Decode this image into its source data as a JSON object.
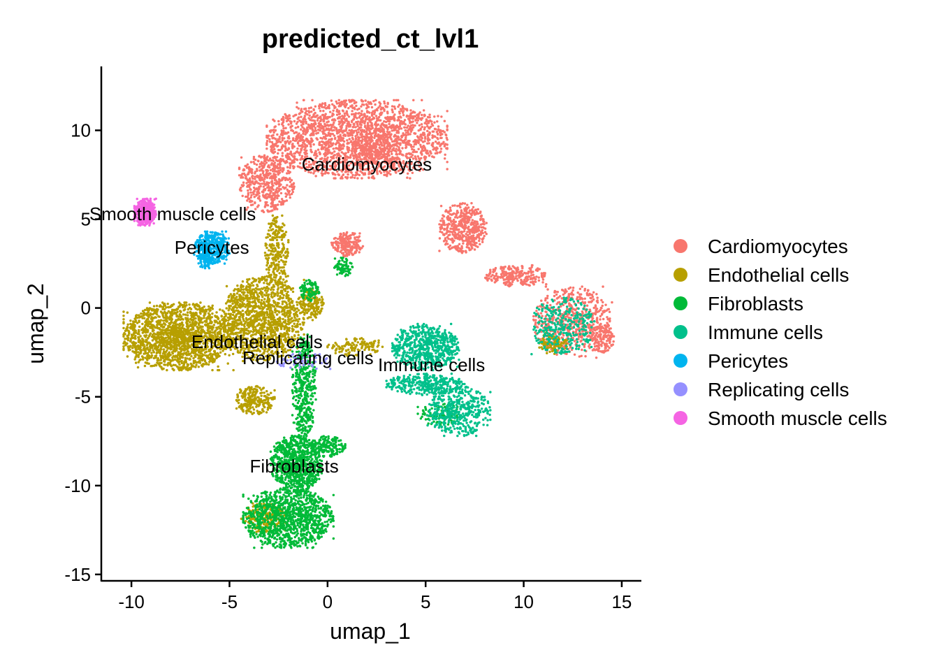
{
  "chart_data": {
    "type": "scatter",
    "title": "predicted_ct_lvl1",
    "xlabel": "umap_1",
    "ylabel": "umap_2",
    "xlim": [
      -11.5,
      16
    ],
    "ylim": [
      -15.4,
      13.6
    ],
    "x_ticks": [
      -10,
      -5,
      0,
      5,
      10,
      15
    ],
    "y_ticks": [
      -15,
      -10,
      -5,
      0,
      5,
      10
    ],
    "x_tick_labels": [
      "-10",
      "-5",
      "0",
      "5",
      "10",
      "15"
    ],
    "y_tick_labels": [
      "-15",
      "-10",
      "-5",
      "0",
      "5",
      "10"
    ],
    "grid": false,
    "legend_position": "right",
    "series": [
      {
        "name": "Cardiomyocytes",
        "color": "#F8766D",
        "label": {
          "text": "Cardiomyocytes",
          "x": 2.0,
          "y": 8.1
        },
        "clusters": [
          {
            "cx": 1.5,
            "cy": 9.5,
            "rx": 4.6,
            "ry": 2.2,
            "n": 2200
          },
          {
            "cx": -3.1,
            "cy": 7.0,
            "rx": 1.4,
            "ry": 1.6,
            "n": 500
          },
          {
            "cx": 2.2,
            "cy": 8.8,
            "rx": 1.0,
            "ry": 0.7,
            "n": 120
          },
          {
            "cx": 1.0,
            "cy": 3.6,
            "rx": 0.8,
            "ry": 0.7,
            "n": 200
          },
          {
            "cx": 6.9,
            "cy": 4.5,
            "rx": 1.2,
            "ry": 1.4,
            "n": 450
          },
          {
            "cx": 9.6,
            "cy": 1.8,
            "rx": 1.6,
            "ry": 0.6,
            "n": 250
          },
          {
            "cx": 12.5,
            "cy": -0.8,
            "rx": 2.0,
            "ry": 2.0,
            "n": 600
          },
          {
            "cx": 14.0,
            "cy": -1.7,
            "rx": 0.6,
            "ry": 0.8,
            "n": 120
          }
        ]
      },
      {
        "name": "Endothelial cells",
        "color": "#B79F00",
        "label": {
          "text": "Endothelial cells",
          "x": -3.6,
          "y": -1.9
        },
        "clusters": [
          {
            "cx": -7.6,
            "cy": -1.6,
            "rx": 2.8,
            "ry": 1.9,
            "n": 1700
          },
          {
            "cx": -3.3,
            "cy": -0.6,
            "rx": 2.1,
            "ry": 2.4,
            "n": 1300
          },
          {
            "cx": -2.6,
            "cy": 3.2,
            "rx": 0.6,
            "ry": 2.0,
            "n": 250
          },
          {
            "cx": -3.7,
            "cy": -5.2,
            "rx": 1.0,
            "ry": 0.8,
            "n": 220
          },
          {
            "cx": -0.8,
            "cy": 0.2,
            "rx": 0.6,
            "ry": 0.9,
            "n": 160
          },
          {
            "cx": 1.4,
            "cy": -2.2,
            "rx": 1.4,
            "ry": 0.5,
            "n": 120
          },
          {
            "cx": 11.5,
            "cy": -2.0,
            "rx": 0.8,
            "ry": 0.6,
            "n": 90
          },
          {
            "cx": -3.2,
            "cy": -11.8,
            "rx": 1.2,
            "ry": 0.8,
            "n": 200
          }
        ]
      },
      {
        "name": "Fibroblasts",
        "color": "#00BA38",
        "label": {
          "text": "Fibroblasts",
          "x": -1.7,
          "y": -8.9
        },
        "clusters": [
          {
            "cx": -1.6,
            "cy": -8.8,
            "rx": 1.3,
            "ry": 1.6,
            "n": 800
          },
          {
            "cx": -2.0,
            "cy": -11.8,
            "rx": 2.3,
            "ry": 1.7,
            "n": 1100
          },
          {
            "cx": -1.2,
            "cy": -4.5,
            "rx": 0.6,
            "ry": 3.0,
            "n": 420
          },
          {
            "cx": 0.0,
            "cy": -7.8,
            "rx": 0.9,
            "ry": 0.6,
            "n": 160
          },
          {
            "cx": -0.9,
            "cy": 1.0,
            "rx": 0.5,
            "ry": 0.6,
            "n": 90
          },
          {
            "cx": 0.8,
            "cy": 2.3,
            "rx": 0.5,
            "ry": 0.6,
            "n": 70
          },
          {
            "cx": 5.8,
            "cy": -6.0,
            "rx": 1.2,
            "ry": 0.6,
            "n": 90
          }
        ]
      },
      {
        "name": "Immune cells",
        "color": "#00C08B",
        "label": {
          "text": "Immune cells",
          "x": 5.3,
          "y": -3.2
        },
        "clusters": [
          {
            "cx": 5.0,
            "cy": -2.2,
            "rx": 1.7,
            "ry": 1.3,
            "n": 650
          },
          {
            "cx": 5.0,
            "cy": -4.3,
            "rx": 2.0,
            "ry": 0.6,
            "n": 320
          },
          {
            "cx": 6.7,
            "cy": -5.8,
            "rx": 1.6,
            "ry": 1.4,
            "n": 450
          },
          {
            "cx": 12.0,
            "cy": -1.0,
            "rx": 1.6,
            "ry": 1.6,
            "n": 320
          }
        ]
      },
      {
        "name": "Pericytes",
        "color": "#00B4EF",
        "label": {
          "text": "Pericytes",
          "x": -5.9,
          "y": 3.4
        },
        "clusters": [
          {
            "cx": -5.9,
            "cy": 3.4,
            "rx": 0.9,
            "ry": 0.9,
            "n": 420
          },
          {
            "cx": -6.2,
            "cy": 2.6,
            "rx": 0.4,
            "ry": 0.4,
            "n": 60
          }
        ]
      },
      {
        "name": "Replicating cells",
        "color": "#9590FF",
        "label": {
          "text": "Replicating cells",
          "x": -1.0,
          "y": -2.8
        },
        "clusters": [
          {
            "cx": -1.2,
            "cy": -3.0,
            "rx": 1.5,
            "ry": 0.5,
            "n": 50
          }
        ]
      },
      {
        "name": "Smooth muscle cells",
        "color": "#F564E3",
        "label": {
          "text": "Smooth muscle cells",
          "x": -7.9,
          "y": 5.3
        },
        "clusters": [
          {
            "cx": -9.3,
            "cy": 5.4,
            "rx": 0.55,
            "ry": 0.75,
            "n": 400
          }
        ]
      }
    ]
  }
}
